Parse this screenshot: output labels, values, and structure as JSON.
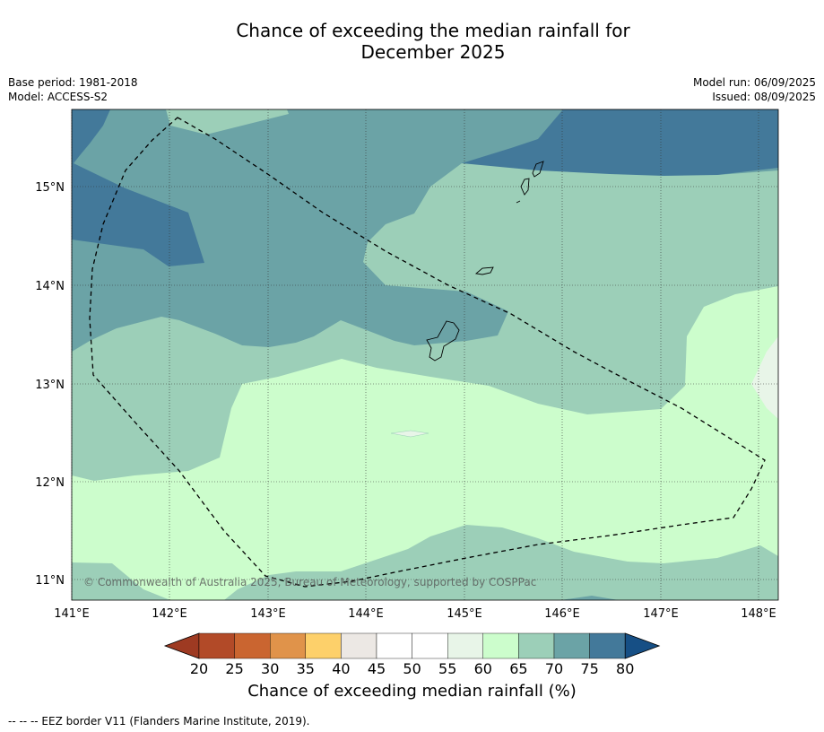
{
  "title_line1": "Chance of exceeding the median rainfall for",
  "title_line2": "December 2025",
  "meta_left": {
    "base_period": "Base period: 1981-2018",
    "model": "Model: ACCESS-S2"
  },
  "meta_right": {
    "model_run": "Model run: 06/09/2025",
    "issued": "Issued: 08/09/2025"
  },
  "map": {
    "lat_labels": [
      "15°N",
      "14°N",
      "13°N",
      "12°N",
      "11°N"
    ],
    "lon_labels": [
      "141°E",
      "142°E",
      "143°E",
      "144°E",
      "145°E",
      "146°E",
      "147°E",
      "148°E"
    ],
    "copyright": "© Commonwealth of Australia 2025, Bureau of Meteorology, supported by COSPPac"
  },
  "colorbar": {
    "labels": [
      "20",
      "25",
      "30",
      "35",
      "40",
      "45",
      "50",
      "55",
      "60",
      "65",
      "70",
      "75",
      "80"
    ],
    "colors": [
      "#b24a28",
      "#ca6530",
      "#e0934a",
      "#fdd06a",
      "#ece8e4",
      "#ffffff",
      "#ffffff",
      "#e8f5e8",
      "#ccfdcc",
      "#9ccfb8",
      "#6ba3a6",
      "#43799a",
      "#164f85"
    ],
    "under_color": "#9e3a22",
    "over_color": "#164f85",
    "title": "Chance of exceeding median rainfall (%)"
  },
  "footnote": "--  --  -- EEZ border V11 (Flanders Marine Institute, 2019)."
}
